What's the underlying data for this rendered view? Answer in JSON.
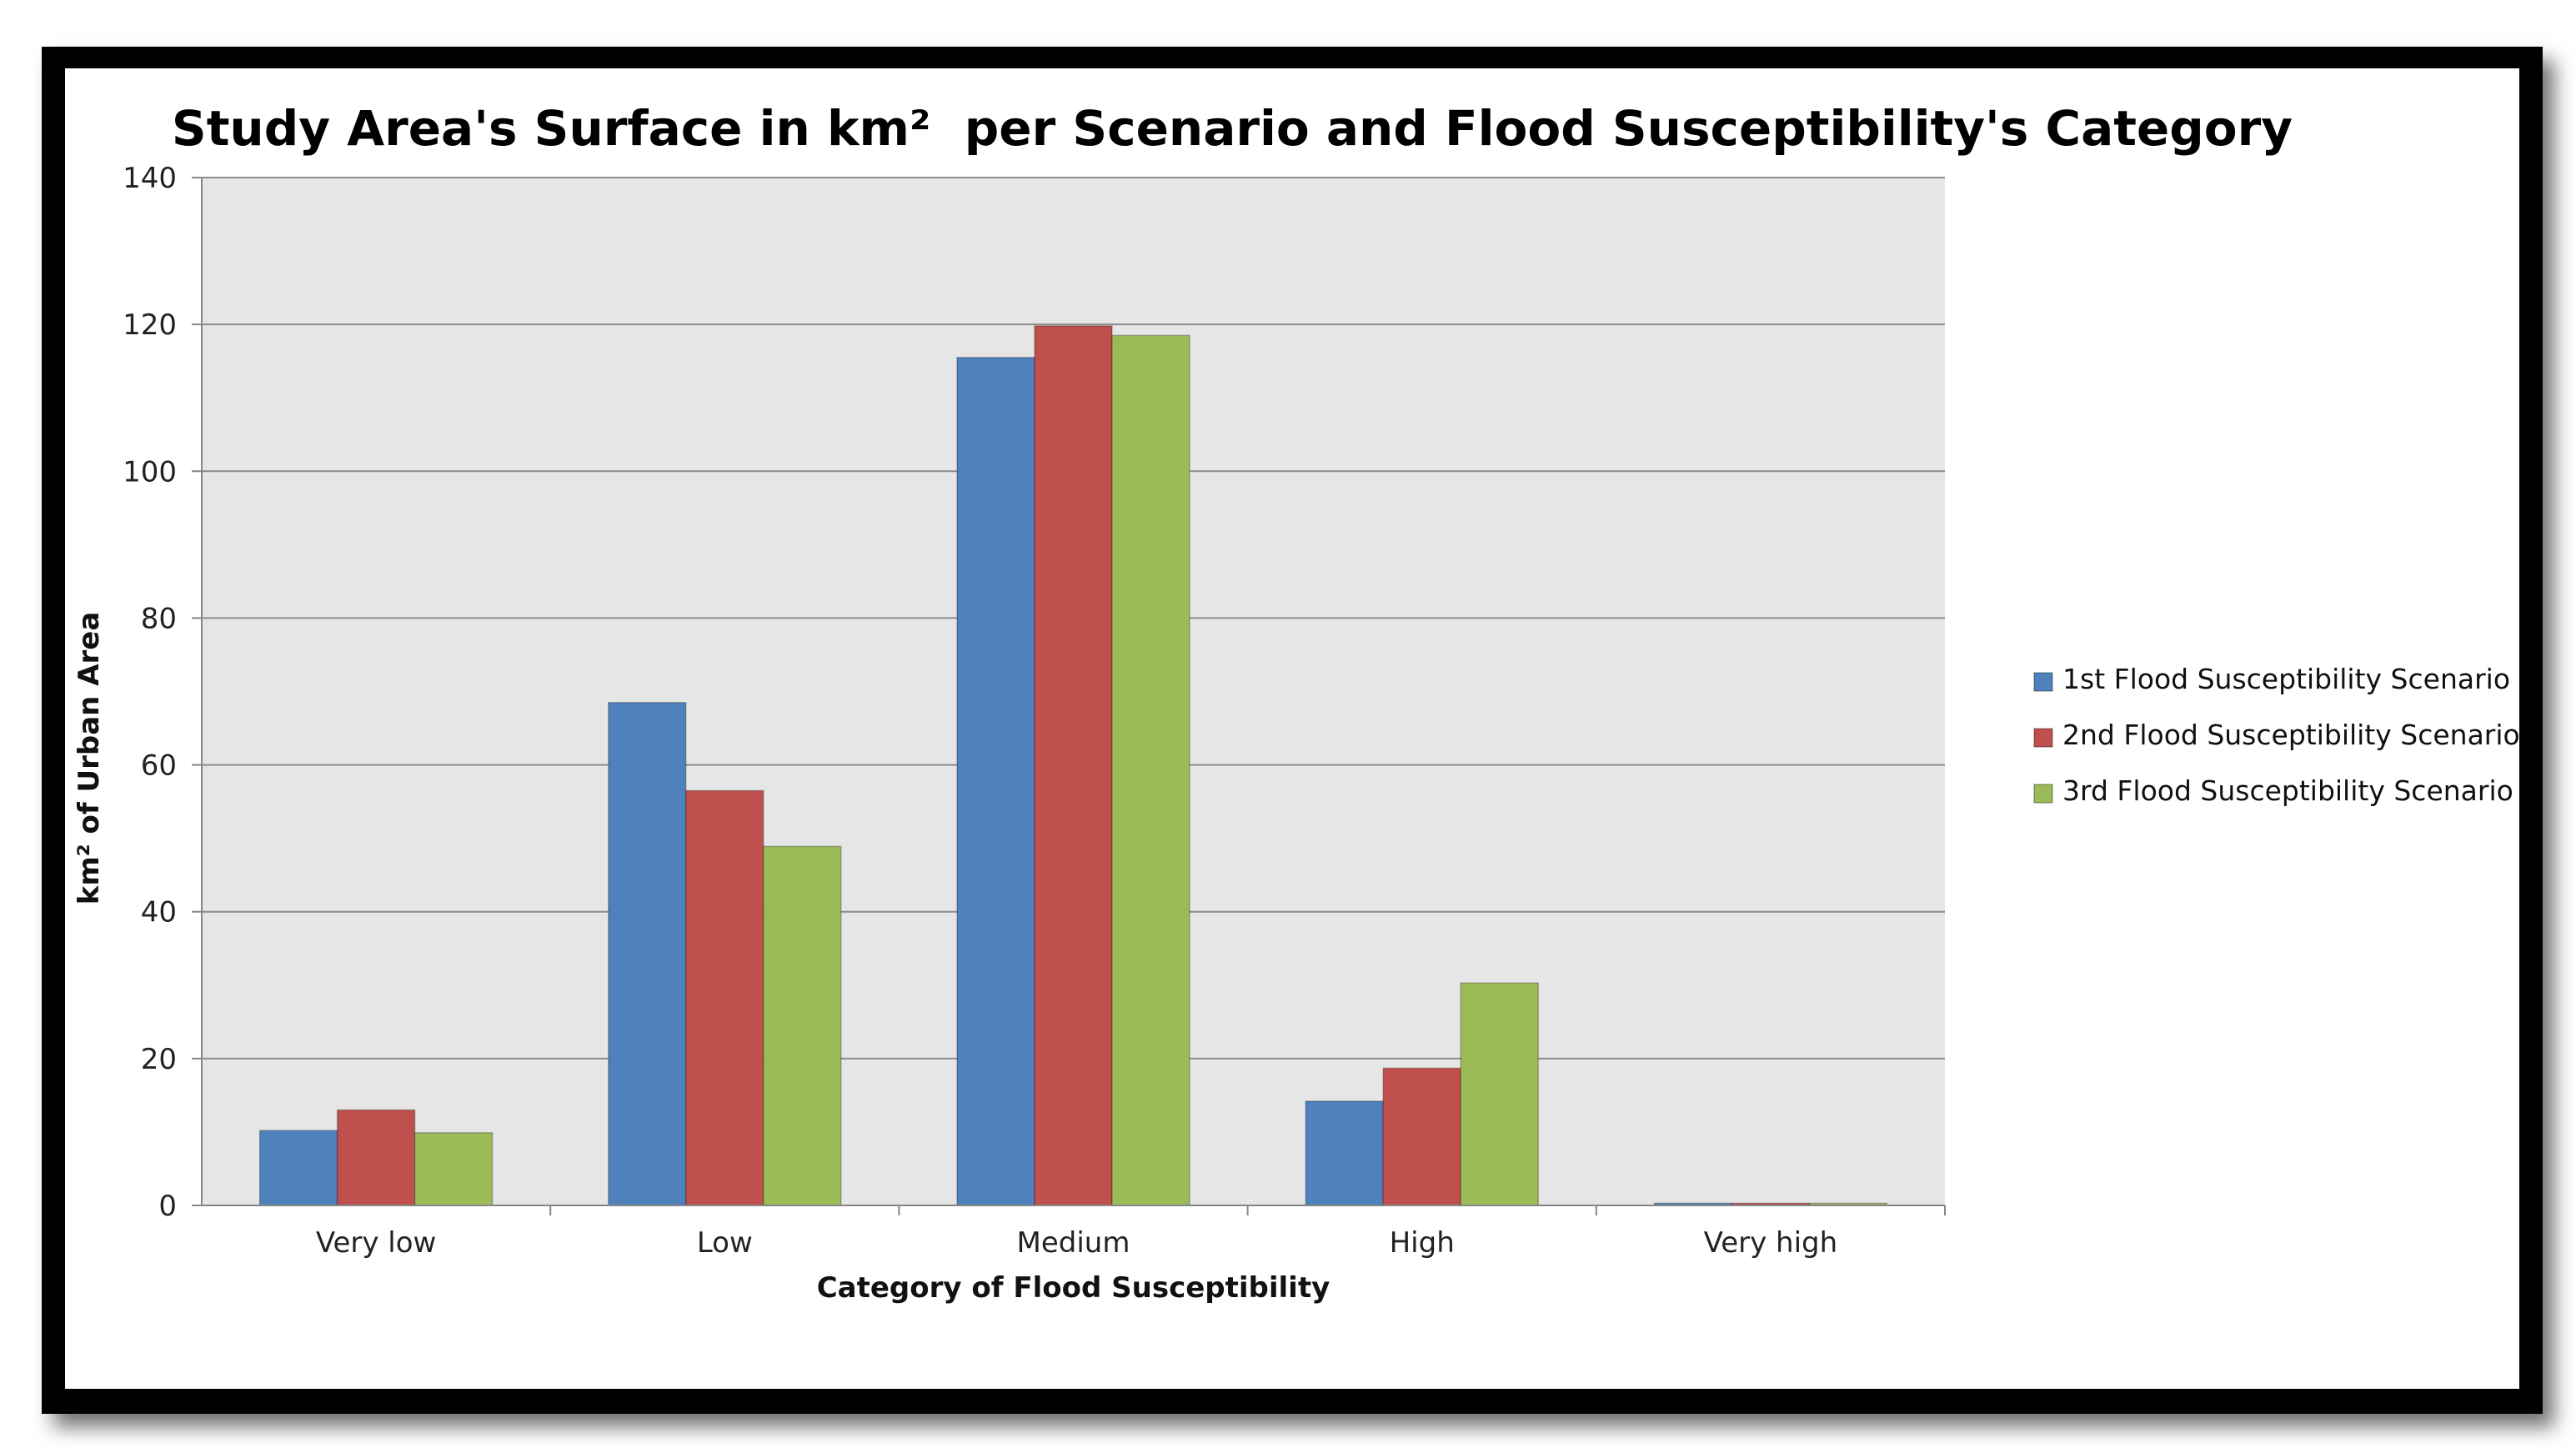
{
  "chart_data": {
    "type": "bar",
    "title": "Study Area's Surface in km²  per Scenario and Flood Susceptibility's Category",
    "xlabel": "Category of Flood Susceptibility",
    "ylabel": "km² of Urban Area",
    "ylim": [
      0,
      140
    ],
    "yticks": [
      0,
      20,
      40,
      60,
      80,
      100,
      120,
      140
    ],
    "categories": [
      "Very low",
      "Low",
      "Medium",
      "High",
      "Very high"
    ],
    "series": [
      {
        "name": "1st Flood Susceptibility Scenario",
        "color": "#4F81BD",
        "values": [
          10.2,
          68.5,
          115.5,
          14.2,
          0.3
        ]
      },
      {
        "name": "2nd Flood Susceptibility Scenario",
        "color": "#C0504D",
        "values": [
          13.0,
          56.5,
          119.8,
          18.7,
          0.3
        ]
      },
      {
        "name": "3rd Flood Susceptibility Scenario",
        "color": "#9BBB59",
        "values": [
          9.9,
          48.9,
          118.5,
          30.3,
          0.3
        ]
      }
    ],
    "grid": true,
    "legend_position": "right"
  }
}
